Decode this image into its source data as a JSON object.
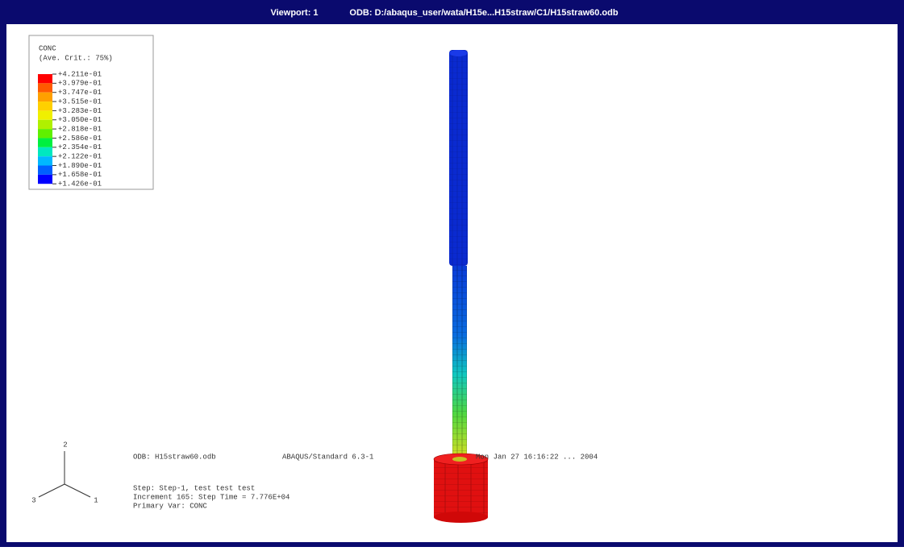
{
  "title_bar": {
    "viewport": "Viewport: 1",
    "odb": "ODB: D:/abaqus_user/wata/H15e...H15straw/C1/H15straw60.odb"
  },
  "legend": {
    "variable": "CONC",
    "criterion": "(Ave. Crit.: 75%)",
    "labels": [
      "+4.211e-01",
      "+3.979e-01",
      "+3.747e-01",
      "+3.515e-01",
      "+3.283e-01",
      "+3.050e-01",
      "+2.818e-01",
      "+2.586e-01",
      "+2.354e-01",
      "+2.122e-01",
      "+1.890e-01",
      "+1.658e-01",
      "+1.426e-01"
    ]
  },
  "info": {
    "odb": "ODB: H15straw60.odb",
    "solver": "ABAQUS/Standard 6.3-1",
    "date": "Mon Jan 27 16:16:22 ... 2004",
    "step": "Step: Step-1, test test test",
    "increment": "Increment    165: Step Time =    7.776E+04",
    "primary_var": "Primary Var: CONC"
  },
  "triad": {
    "axis_1": "1",
    "axis_2": "2",
    "axis_3": "3"
  }
}
